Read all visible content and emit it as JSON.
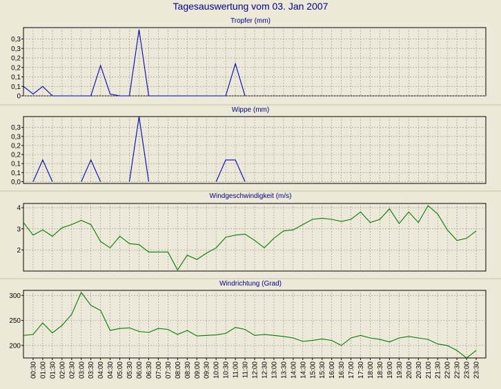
{
  "title": "Tagesauswertung vom 03. Jan 2007",
  "x_tick_labels": [
    "00:30",
    "01:00",
    "01:30",
    "02:00",
    "02:30",
    "03:00",
    "03:30",
    "04:00",
    "04:30",
    "05:00",
    "05:30",
    "06:00",
    "06:30",
    "07:00",
    "07:30",
    "08:00",
    "08:30",
    "09:00",
    "09:30",
    "10:00",
    "10:30",
    "11:00",
    "11:30",
    "12:00",
    "12:30",
    "13:00",
    "13:30",
    "14:00",
    "14:30",
    "15:00",
    "15:30",
    "16:00",
    "16:30",
    "17:00",
    "17:30",
    "18:00",
    "18:30",
    "19:00",
    "19:30",
    "20:00",
    "20:30",
    "21:00",
    "21:30",
    "22:00",
    "22:30",
    "23:00",
    "23:30"
  ],
  "colors": {
    "background": "#ece9d8",
    "plot_background": "#ece9d8",
    "grid": "#9a9a9a",
    "title_text": "#00008b",
    "axis_text": "#000000",
    "blue_series": "#0000c0",
    "green_series": "#007a00"
  },
  "chart_data": [
    {
      "type": "line",
      "title": "Tropfer (mm)",
      "color": "blue",
      "ylim": [
        0,
        0.36
      ],
      "ytick_values": [
        0,
        0.05,
        0.1,
        0.15,
        0.2,
        0.25,
        0.3
      ],
      "ytick_labels": [
        "0",
        "0,1",
        "0,1",
        "0,2",
        "0,2",
        "0,3",
        "0,3"
      ],
      "x": [
        "00:00",
        "00:30",
        "01:00",
        "01:30",
        "02:00",
        "02:30",
        "03:00",
        "03:30",
        "04:00",
        "04:30",
        "05:00",
        "05:30",
        "06:00",
        "06:30",
        "07:00",
        "07:30",
        "08:00",
        "08:30",
        "09:00",
        "09:30",
        "10:00",
        "10:30",
        "11:00",
        "11:30",
        "12:00",
        "12:30",
        "13:00",
        "13:30",
        "14:00",
        "14:30",
        "15:00",
        "15:30",
        "16:00",
        "16:30",
        "17:00",
        "17:30",
        "18:00",
        "18:30",
        "19:00",
        "19:30",
        "20:00",
        "20:30",
        "21:00",
        "21:30",
        "22:00",
        "22:30",
        "23:00",
        "23:30",
        "24:00"
      ],
      "values": [
        0.05,
        0.01,
        0.05,
        0,
        0,
        0,
        0,
        0,
        0.16,
        0.01,
        0,
        0,
        0.35,
        0,
        0,
        0,
        0,
        0,
        0,
        0,
        0,
        0,
        0.17,
        0,
        null,
        null,
        null,
        null,
        null,
        null,
        null,
        null,
        null,
        null,
        null,
        null,
        null,
        null,
        null,
        null,
        null,
        null,
        null,
        null,
        null,
        null,
        null,
        null,
        null
      ]
    },
    {
      "type": "line",
      "title": "Wippe (mm)",
      "color": "blue",
      "ylim": [
        -0.01,
        0.36
      ],
      "ytick_values": [
        0,
        0.05,
        0.1,
        0.15,
        0.2,
        0.25,
        0.3
      ],
      "ytick_labels": [
        "0,0",
        "0,1",
        "0,1",
        "0,2",
        "0,2",
        "0,3",
        "0,3"
      ],
      "x": [
        "00:00",
        "00:30",
        "01:00",
        "01:30",
        "02:00",
        "02:30",
        "03:00",
        "03:30",
        "04:00",
        "04:30",
        "05:00",
        "05:30",
        "06:00",
        "06:30",
        "07:00",
        "07:30",
        "08:00",
        "08:30",
        "09:00",
        "09:30",
        "10:00",
        "10:30",
        "11:00",
        "11:30",
        "12:00",
        "12:30",
        "13:00",
        "13:30",
        "14:00",
        "14:30",
        "15:00",
        "15:30",
        "16:00",
        "16:30",
        "17:00",
        "17:30",
        "18:00",
        "18:30",
        "19:00",
        "19:30",
        "20:00",
        "20:30",
        "21:00",
        "21:30",
        "22:00",
        "22:30",
        "23:00",
        "23:30",
        "24:00"
      ],
      "values": [
        null,
        0,
        0.12,
        0,
        null,
        null,
        0,
        0.12,
        0,
        null,
        null,
        0,
        0.36,
        0,
        null,
        null,
        null,
        null,
        null,
        null,
        0,
        0.12,
        0.12,
        0,
        null,
        null,
        null,
        null,
        null,
        null,
        null,
        null,
        null,
        null,
        null,
        null,
        null,
        null,
        null,
        null,
        null,
        null,
        null,
        null,
        null,
        null,
        null,
        null,
        null
      ]
    },
    {
      "type": "line",
      "title": "Windgeschwindigkeit (m/s)",
      "color": "green",
      "ylim": [
        1.0,
        4.2
      ],
      "ytick_values": [
        2,
        3,
        4
      ],
      "ytick_labels": [
        "2",
        "3",
        "4"
      ],
      "x": [
        "00:00",
        "00:30",
        "01:00",
        "01:30",
        "02:00",
        "02:30",
        "03:00",
        "03:30",
        "04:00",
        "04:30",
        "05:00",
        "05:30",
        "06:00",
        "06:30",
        "07:00",
        "07:30",
        "08:00",
        "08:30",
        "09:00",
        "09:30",
        "10:00",
        "10:30",
        "11:00",
        "11:30",
        "12:00",
        "12:30",
        "13:00",
        "13:30",
        "14:00",
        "14:30",
        "15:00",
        "15:30",
        "16:00",
        "16:30",
        "17:00",
        "17:30",
        "18:00",
        "18:30",
        "19:00",
        "19:30",
        "20:00",
        "20:30",
        "21:00",
        "21:30",
        "22:00",
        "22:30",
        "23:00",
        "23:30",
        "24:00"
      ],
      "values": [
        3.3,
        2.7,
        2.95,
        2.65,
        3.05,
        3.2,
        3.4,
        3.2,
        2.4,
        2.1,
        2.65,
        2.3,
        2.25,
        1.9,
        1.9,
        1.9,
        1.05,
        1.75,
        1.55,
        1.85,
        2.1,
        2.6,
        2.7,
        2.75,
        2.45,
        2.1,
        2.55,
        2.9,
        2.95,
        3.2,
        3.45,
        3.5,
        3.45,
        3.35,
        3.45,
        3.8,
        3.3,
        3.45,
        3.95,
        3.25,
        3.8,
        3.3,
        4.1,
        3.7,
        2.95,
        2.45,
        2.55,
        2.9,
        null
      ]
    },
    {
      "type": "line",
      "title": "Windrichtung (Grad)",
      "color": "green",
      "ylim": [
        175,
        310
      ],
      "ytick_values": [
        200,
        250,
        300
      ],
      "ytick_labels": [
        "200",
        "250",
        "300"
      ],
      "x": [
        "00:00",
        "00:30",
        "01:00",
        "01:30",
        "02:00",
        "02:30",
        "03:00",
        "03:30",
        "04:00",
        "04:30",
        "05:00",
        "05:30",
        "06:00",
        "06:30",
        "07:00",
        "07:30",
        "08:00",
        "08:30",
        "09:00",
        "09:30",
        "10:00",
        "10:30",
        "11:00",
        "11:30",
        "12:00",
        "12:30",
        "13:00",
        "13:30",
        "14:00",
        "14:30",
        "15:00",
        "15:30",
        "16:00",
        "16:30",
        "17:00",
        "17:30",
        "18:00",
        "18:30",
        "19:00",
        "19:30",
        "20:00",
        "20:30",
        "21:00",
        "21:30",
        "22:00",
        "22:30",
        "23:00",
        "23:30",
        "24:00"
      ],
      "values": [
        220,
        222,
        245,
        225,
        240,
        262,
        306,
        280,
        270,
        230,
        234,
        235,
        228,
        226,
        234,
        232,
        222,
        230,
        219,
        220,
        221,
        224,
        236,
        232,
        220,
        222,
        220,
        218,
        215,
        208,
        210,
        213,
        210,
        200,
        215,
        220,
        215,
        212,
        207,
        215,
        218,
        215,
        212,
        203,
        200,
        190,
        175,
        190,
        null
      ]
    }
  ]
}
